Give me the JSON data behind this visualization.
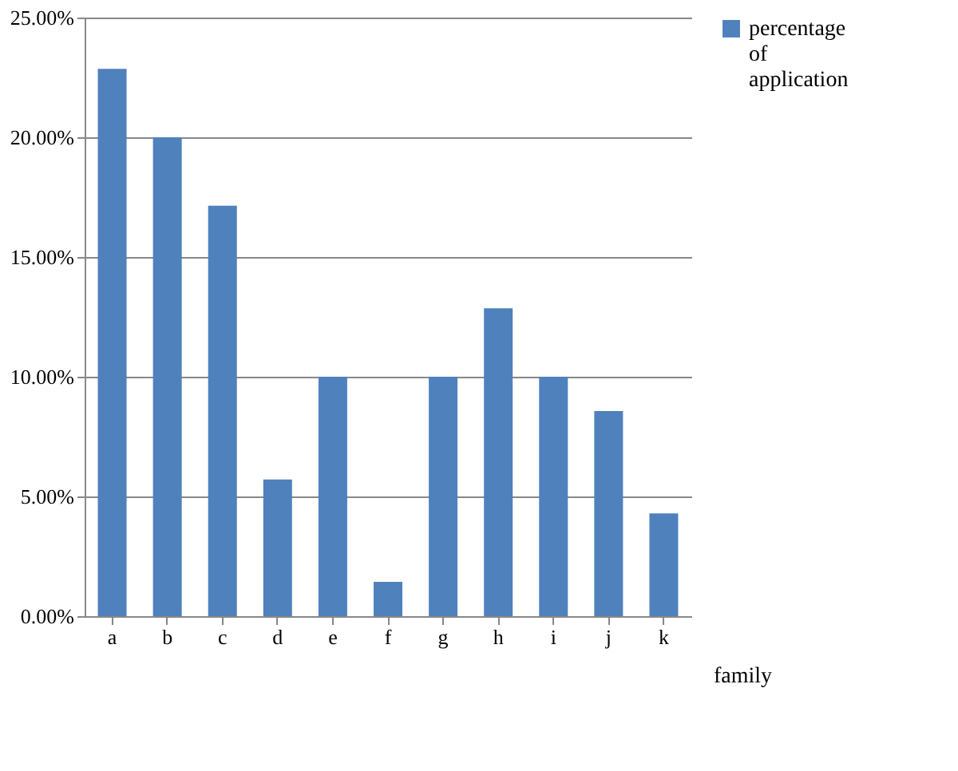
{
  "chart_data": {
    "type": "bar",
    "xlabel": "family",
    "categories": [
      "a",
      "b",
      "c",
      "d",
      "e",
      "f",
      "g",
      "h",
      "i",
      "j",
      "k"
    ],
    "series": [
      {
        "name": "percentage of application",
        "color": "#4f81bd",
        "values": [
          22.86,
          20.0,
          17.14,
          5.71,
          10.0,
          1.43,
          10.0,
          12.86,
          10.0,
          8.57,
          4.29
        ]
      }
    ],
    "ylim": [
      0,
      25
    ],
    "yticks": [
      {
        "value": 0,
        "label": "0.00%"
      },
      {
        "value": 5,
        "label": "5.00%"
      },
      {
        "value": 10,
        "label": "10.00%"
      },
      {
        "value": 15,
        "label": "15.00%"
      },
      {
        "value": 20,
        "label": "20.00%"
      },
      {
        "value": 25,
        "label": "25.00%"
      }
    ],
    "grid": "y",
    "legend": "right"
  }
}
